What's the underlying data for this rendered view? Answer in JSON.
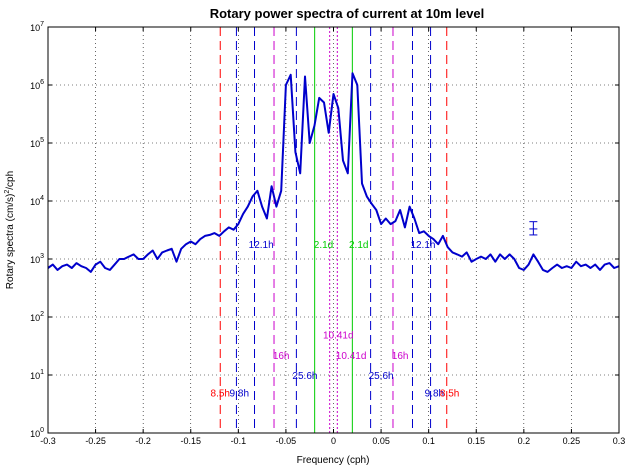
{
  "chart_data": {
    "type": "line",
    "title": "Rotary power spectra of current at 10m level",
    "xlabel": "Frequency (cph)",
    "ylabel_parts": [
      "Rotary spectra (cm/s)",
      "2",
      "/cph"
    ],
    "xlim": [
      -0.3,
      0.3
    ],
    "ylim": [
      1,
      10000000
    ],
    "yscale": "log",
    "grid": true,
    "x_ticks": [
      -0.3,
      -0.25,
      -0.2,
      -0.15,
      -0.1,
      -0.05,
      0,
      0.05,
      0.1,
      0.15,
      0.2,
      0.25,
      0.3
    ],
    "x_tick_labels": [
      "-0.3",
      "-0.25",
      "-0.2",
      "-0.15",
      "-0.1",
      "-0.05",
      "0",
      "0.05",
      "0.1",
      "0.15",
      "0.2",
      "0.25",
      "0.3"
    ],
    "y_ticks": [
      {
        "value": 1,
        "base": "10",
        "exp": "0"
      },
      {
        "value": 10,
        "base": "10",
        "exp": "1"
      },
      {
        "value": 100,
        "base": "10",
        "exp": "2"
      },
      {
        "value": 1000,
        "base": "10",
        "exp": "3"
      },
      {
        "value": 10000,
        "base": "10",
        "exp": "4"
      },
      {
        "value": 100000,
        "base": "10",
        "exp": "5"
      },
      {
        "value": 1000000,
        "base": "10",
        "exp": "6"
      },
      {
        "value": 10000000,
        "base": "10",
        "exp": "7"
      }
    ],
    "series": [
      {
        "color": "#0000cc",
        "x": [
          -0.3,
          -0.295,
          -0.29,
          -0.285,
          -0.28,
          -0.275,
          -0.27,
          -0.265,
          -0.26,
          -0.255,
          -0.25,
          -0.245,
          -0.24,
          -0.235,
          -0.23,
          -0.225,
          -0.22,
          -0.215,
          -0.21,
          -0.205,
          -0.2,
          -0.195,
          -0.19,
          -0.185,
          -0.18,
          -0.175,
          -0.17,
          -0.165,
          -0.16,
          -0.155,
          -0.15,
          -0.145,
          -0.14,
          -0.135,
          -0.13,
          -0.125,
          -0.12,
          -0.115,
          -0.11,
          -0.105,
          -0.1,
          -0.095,
          -0.09,
          -0.085,
          -0.08,
          -0.075,
          -0.07,
          -0.065,
          -0.06,
          -0.055,
          -0.05,
          -0.045,
          -0.04,
          -0.035,
          -0.03,
          -0.025,
          -0.02,
          -0.015,
          -0.01,
          -0.005,
          0,
          0.005,
          0.01,
          0.015,
          0.02,
          0.025,
          0.03,
          0.035,
          0.04,
          0.045,
          0.05,
          0.055,
          0.06,
          0.065,
          0.07,
          0.075,
          0.08,
          0.085,
          0.09,
          0.095,
          0.1,
          0.105,
          0.11,
          0.115,
          0.12,
          0.125,
          0.13,
          0.135,
          0.14,
          0.145,
          0.15,
          0.155,
          0.16,
          0.165,
          0.17,
          0.175,
          0.18,
          0.185,
          0.19,
          0.195,
          0.2,
          0.205,
          0.21,
          0.215,
          0.22,
          0.225,
          0.23,
          0.235,
          0.24,
          0.245,
          0.25,
          0.255,
          0.26,
          0.265,
          0.27,
          0.275,
          0.28,
          0.285,
          0.29,
          0.295,
          0.3
        ],
        "y": [
          700,
          800,
          650,
          750,
          800,
          700,
          850,
          750,
          700,
          600,
          800,
          900,
          700,
          650,
          800,
          1000,
          1000,
          1100,
          1200,
          1000,
          1000,
          1200,
          1400,
          1000,
          1300,
          1400,
          1500,
          900,
          1500,
          1800,
          2000,
          1800,
          2200,
          2500,
          2600,
          2800,
          2500,
          3000,
          3500,
          3200,
          4000,
          6000,
          8000,
          12000,
          15000,
          8000,
          5000,
          18000,
          8000,
          15000,
          1000000,
          1500000,
          70000,
          30000,
          1400000,
          100000,
          200000,
          600000,
          500000,
          150000,
          700000,
          400000,
          50000,
          30000,
          1600000,
          1000000,
          20000,
          12000,
          9000,
          7000,
          4000,
          5000,
          4000,
          4500,
          7000,
          3500,
          8000,
          5000,
          2800,
          3000,
          2500,
          2200,
          1800,
          2500,
          1600,
          1300,
          1200,
          1100,
          1300,
          900,
          1000,
          1100,
          1000,
          1200,
          900,
          1200,
          1000,
          1200,
          1000,
          700,
          650,
          800,
          1200,
          900,
          650,
          600,
          700,
          800,
          700,
          750,
          700,
          900,
          750,
          800,
          700,
          800,
          650,
          800,
          850,
          700,
          750
        ]
      }
    ],
    "error_bar": {
      "x": 0.21,
      "y": 3300,
      "low": 2600,
      "high": 4400,
      "color": "#0000cc"
    },
    "vlines": [
      {
        "x": -0.119,
        "color": "#ff0000",
        "style": "dash"
      },
      {
        "x": 0.119,
        "color": "#ff0000",
        "style": "dash"
      },
      {
        "x": -0.102,
        "color": "#0000cc",
        "style": "dash"
      },
      {
        "x": 0.102,
        "color": "#0000cc",
        "style": "dash"
      },
      {
        "x": -0.083,
        "color": "#0000cc",
        "style": "dash"
      },
      {
        "x": 0.083,
        "color": "#0000cc",
        "style": "dash"
      },
      {
        "x": -0.0625,
        "color": "#cc00cc",
        "style": "dash"
      },
      {
        "x": 0.0625,
        "color": "#cc00cc",
        "style": "dash"
      },
      {
        "x": -0.039,
        "color": "#0000cc",
        "style": "dash"
      },
      {
        "x": 0.039,
        "color": "#0000cc",
        "style": "dash"
      },
      {
        "x": -0.0198,
        "color": "#00cc00",
        "style": "solid"
      },
      {
        "x": 0.0198,
        "color": "#00cc00",
        "style": "solid"
      },
      {
        "x": -0.004,
        "color": "#cc00cc",
        "style": "dot"
      },
      {
        "x": 0.004,
        "color": "#cc00cc",
        "style": "dot"
      }
    ],
    "annotations": [
      {
        "text": "8.5h",
        "x": -0.119,
        "y": 5,
        "color": "#ff0000"
      },
      {
        "text": "9.8h",
        "x": -0.099,
        "y": 5,
        "color": "#0000cc"
      },
      {
        "text": "9.8h",
        "x": 0.106,
        "y": 5,
        "color": "#0000cc"
      },
      {
        "text": "8.5h",
        "x": 0.122,
        "y": 5,
        "color": "#ff0000"
      },
      {
        "text": "16h",
        "x": -0.055,
        "y": 22,
        "color": "#cc00cc"
      },
      {
        "text": "16h",
        "x": 0.07,
        "y": 22,
        "color": "#cc00cc"
      },
      {
        "text": "25.6h",
        "x": -0.03,
        "y": 10,
        "color": "#0000cc"
      },
      {
        "text": "25.6h",
        "x": 0.05,
        "y": 10,
        "color": "#0000cc"
      },
      {
        "text": "12.1h",
        "x": -0.076,
        "y": 1800,
        "color": "#0000cc"
      },
      {
        "text": "12.1h",
        "x": 0.094,
        "y": 1800,
        "color": "#0000cc"
      },
      {
        "text": "2.1d",
        "x": -0.0105,
        "y": 1800,
        "color": "#00cc00"
      },
      {
        "text": "2.1d",
        "x": 0.0265,
        "y": 1800,
        "color": "#00cc00"
      },
      {
        "text": "10.41d",
        "x": 0.005,
        "y": 50,
        "color": "#cc00cc"
      },
      {
        "text": "10.41d",
        "x": 0.0185,
        "y": 22,
        "color": "#cc00cc"
      }
    ]
  }
}
